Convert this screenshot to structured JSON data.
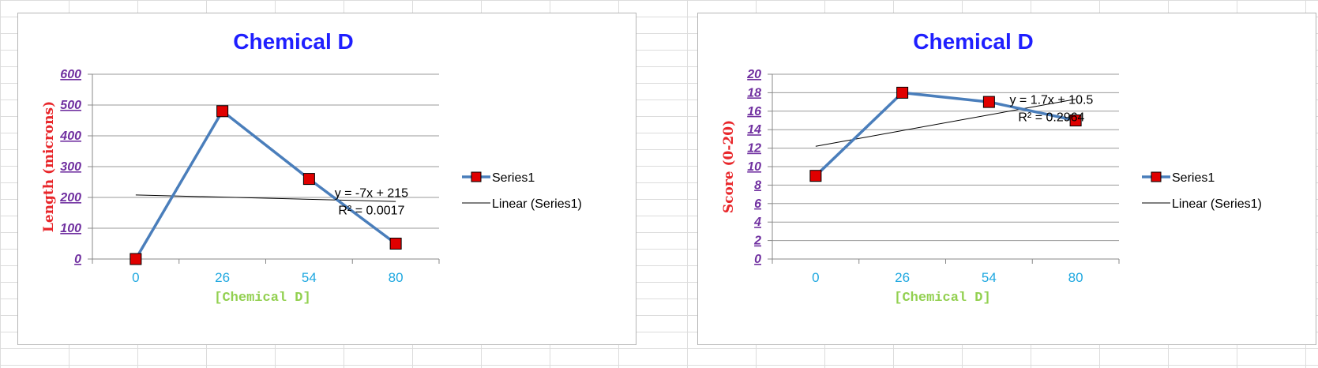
{
  "chart_data": [
    {
      "type": "line",
      "title": "Chemical D",
      "xlabel": "[Chemical D]",
      "ylabel": "Length (microns)",
      "categories": [
        "0",
        "26",
        "54",
        "80"
      ],
      "series": [
        {
          "name": "Series1",
          "values": [
            0,
            480,
            260,
            50
          ],
          "color": "#4a7ebb",
          "marker_color": "#e00000"
        }
      ],
      "trendline": {
        "name": "Linear (Series1)",
        "equation": "y = -7x + 215",
        "r2": "R² = 0.0017",
        "slope": -7,
        "intercept": 215,
        "color": "#000000"
      },
      "ylim": [
        0,
        600
      ],
      "yticks": [
        0,
        100,
        200,
        300,
        400,
        500,
        600
      ],
      "grid": true,
      "legend": "right"
    },
    {
      "type": "line",
      "title": "Chemical D",
      "xlabel": "[Chemical D]",
      "ylabel": "Score (0-20)",
      "categories": [
        "0",
        "26",
        "54",
        "80"
      ],
      "series": [
        {
          "name": "Series1",
          "values": [
            9,
            18,
            17,
            15
          ],
          "color": "#4a7ebb",
          "marker_color": "#e00000"
        }
      ],
      "trendline": {
        "name": "Linear (Series1)",
        "equation": "y = 1.7x + 10.5",
        "r2": "R² = 0.2964",
        "slope": 1.7,
        "intercept": 10.5,
        "color": "#000000"
      },
      "ylim": [
        0,
        20
      ],
      "yticks": [
        0,
        2,
        4,
        6,
        8,
        10,
        12,
        14,
        16,
        18,
        20
      ],
      "grid": true,
      "legend": "right"
    }
  ]
}
